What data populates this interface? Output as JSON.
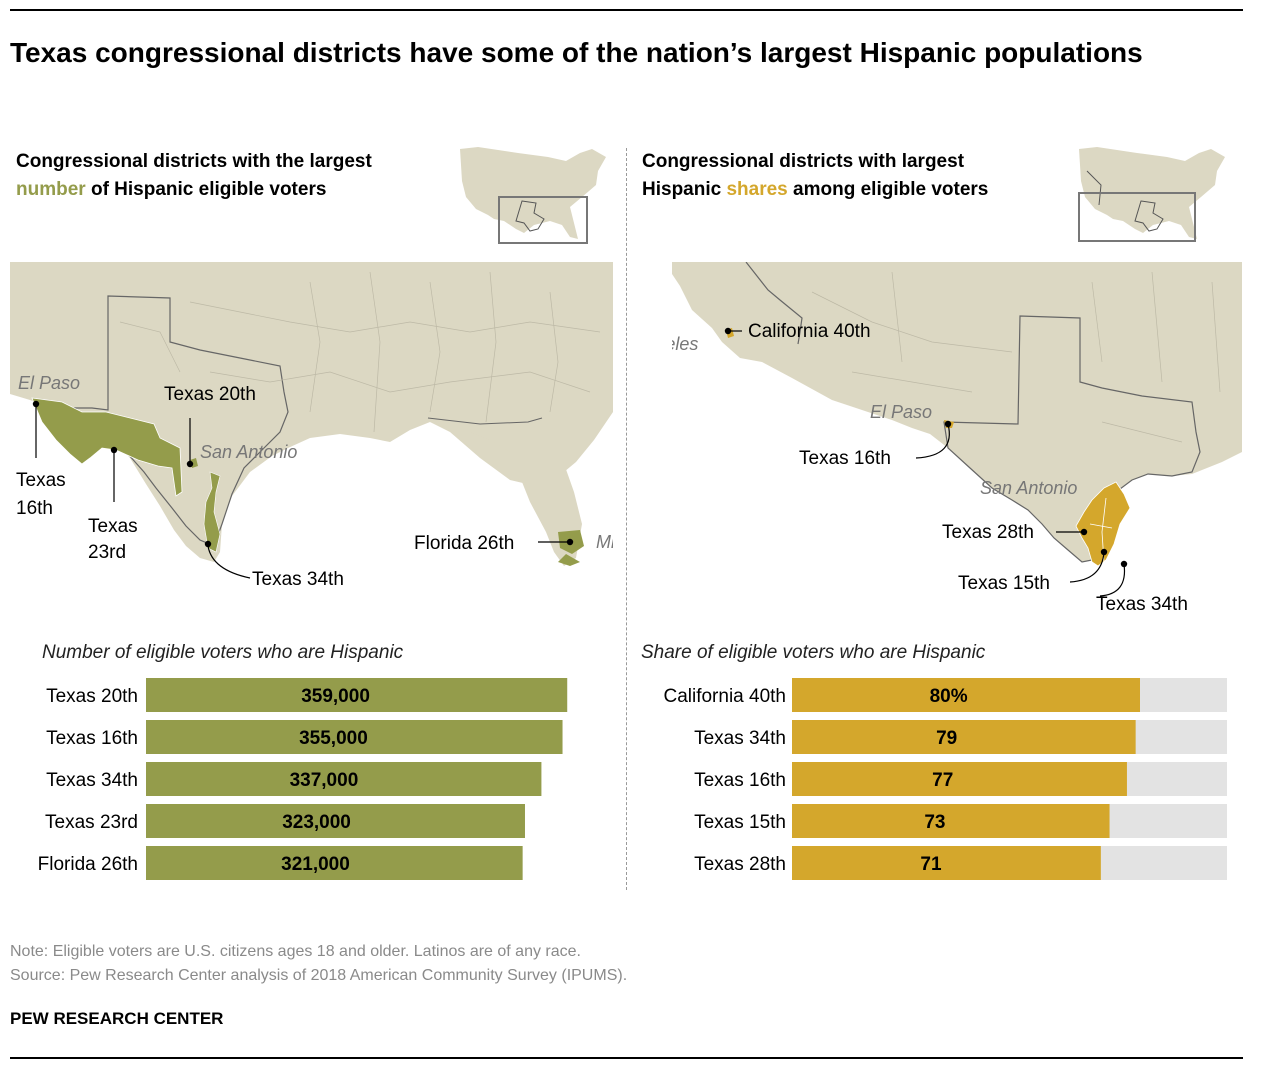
{
  "title": "Texas congressional districts have some of the nation’s largest Hispanic populations",
  "left_panel": {
    "heading_pre": "Congressional districts with the largest ",
    "heading_highlight": "number",
    "heading_post": " of Hispanic eligible voters",
    "map_labels": {
      "el_paso": "El Paso",
      "san_antonio": "San Antonio",
      "miami": "Miami",
      "texas_20th": "Texas 20th",
      "texas_16th_a": "Texas",
      "texas_16th_b": "16th",
      "texas_23rd_a": "Texas",
      "texas_23rd_b": "23rd",
      "texas_34th": "Texas 34th",
      "florida_26th": "Florida 26th"
    }
  },
  "right_panel": {
    "heading_line1": "Congressional districts with largest",
    "heading_pre": "Hispanic ",
    "heading_highlight": "shares",
    "heading_post": " among eligible voters",
    "map_labels": {
      "los_angeles": "Los Angeles",
      "california_40th": "California 40th",
      "el_paso": "El Paso",
      "texas_16th": "Texas 16th",
      "san_antonio": "San Antonio",
      "texas_28th": "Texas 28th",
      "texas_15th": "Texas 15th",
      "texas_34th": "Texas 34th"
    }
  },
  "chart_data": [
    {
      "type": "bar",
      "orientation": "horizontal",
      "subtitle": "Number of eligible voters who are Hispanic",
      "categories": [
        "Texas 20th",
        "Texas 16th",
        "Texas 34th",
        "Texas 23rd",
        "Florida 26th"
      ],
      "values": [
        359000,
        355000,
        337000,
        323000,
        321000
      ],
      "value_labels": [
        "359,000",
        "355,000",
        "337,000",
        "323,000",
        "321,000"
      ],
      "xlim": [
        0,
        375000
      ],
      "grid": false,
      "color": "#949c4b"
    },
    {
      "type": "bar",
      "orientation": "horizontal",
      "subtitle": "Share of eligible voters who are Hispanic",
      "categories": [
        "California 40th",
        "Texas 34th",
        "Texas 16th",
        "Texas 15th",
        "Texas 28th"
      ],
      "values": [
        80,
        79,
        77,
        73,
        71
      ],
      "value_labels": [
        "80%",
        "79",
        "77",
        "73",
        "71"
      ],
      "xlim": [
        0,
        100
      ],
      "grid": false,
      "color": "#d4a72c",
      "track_color": "#e3e3e3"
    }
  ],
  "colors": {
    "green": "#949c4b",
    "gold": "#d4a72c",
    "land": "#dcd8c3",
    "water": "#ffffff"
  },
  "note": "Note: Eligible voters are U.S. citizens ages 18 and older. Latinos are of any race.",
  "source": "Source: Pew Research Center analysis of 2018 American Community Survey (IPUMS).",
  "brand": "PEW RESEARCH CENTER"
}
